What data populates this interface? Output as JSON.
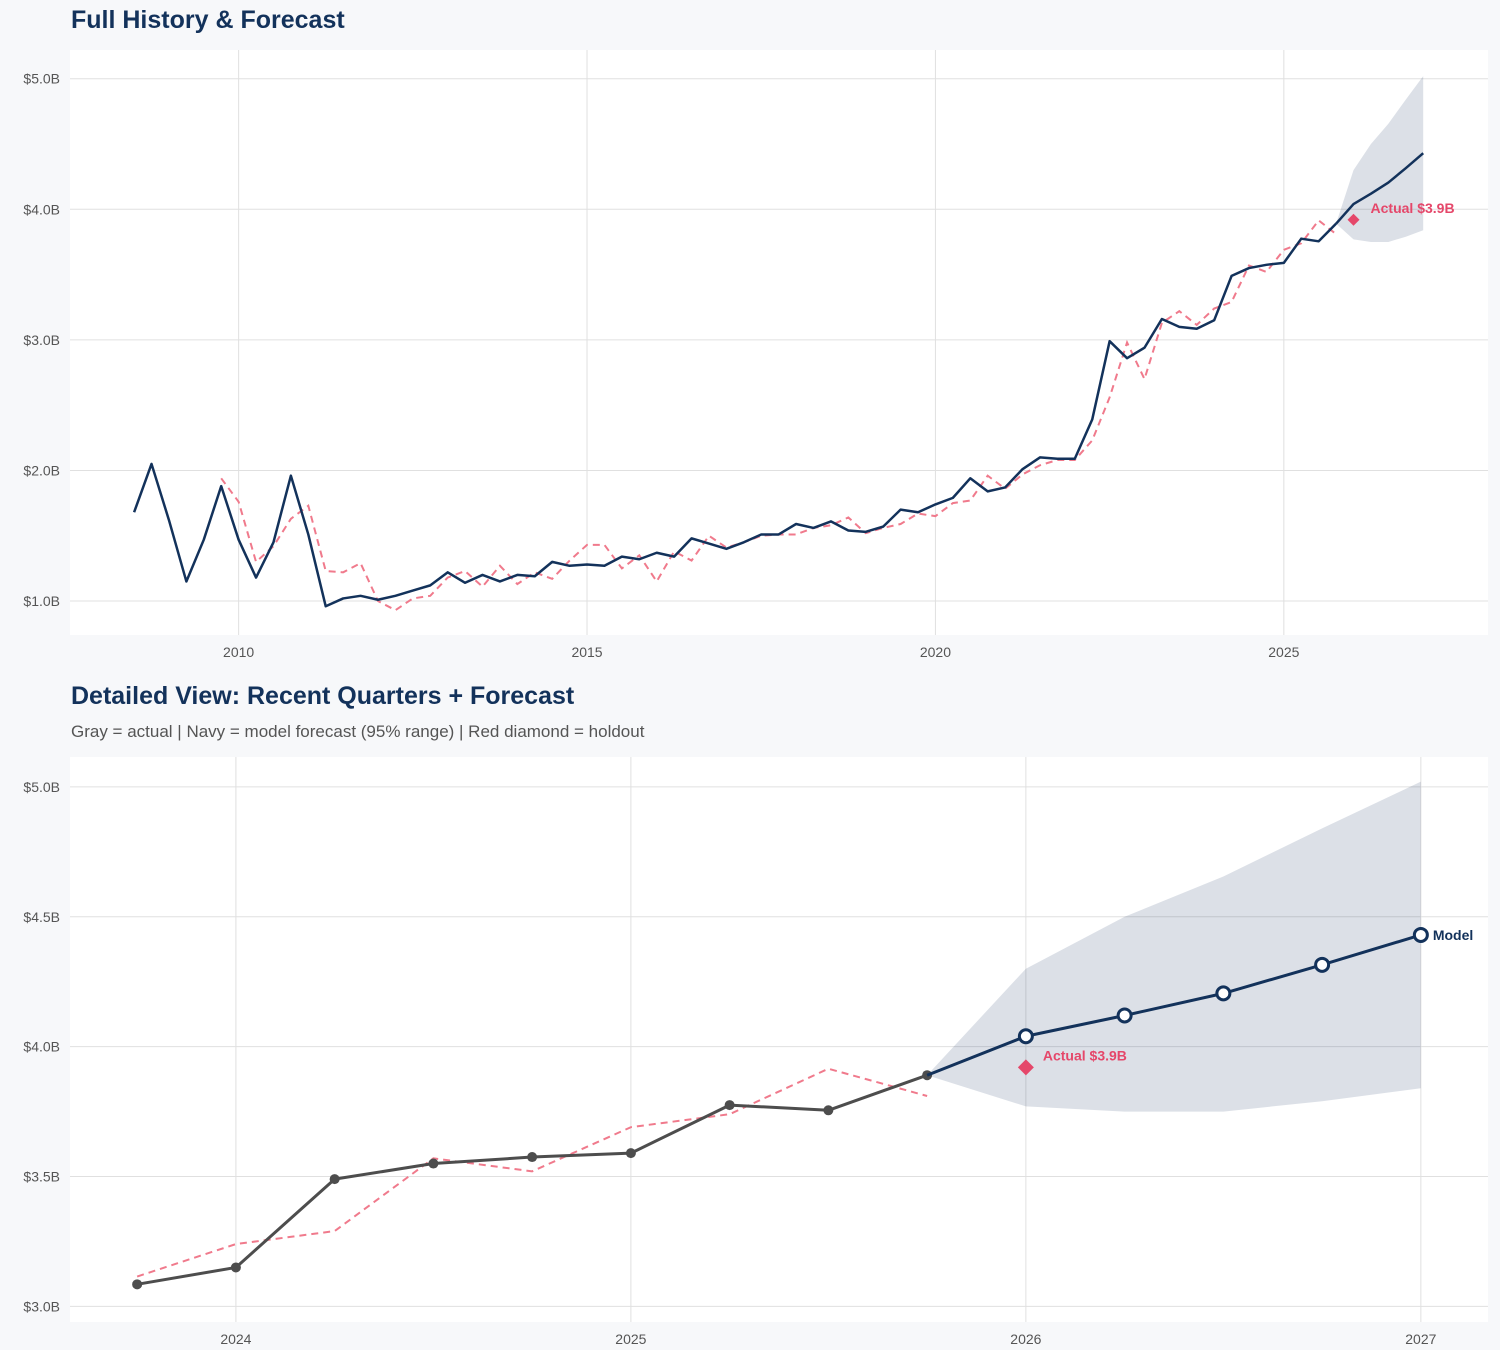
{
  "chart_data": [
    {
      "type": "line",
      "title": "Full History & Forecast",
      "xlabel": "",
      "ylabel": "",
      "xlim": [
        2007.58,
        2027.93
      ],
      "ylim": [
        0.74,
        5.22
      ],
      "x_ticks": [
        2010,
        2015,
        2020,
        2025
      ],
      "x_tick_labels": [
        "2010",
        "2015",
        "2020",
        "2025"
      ],
      "y_ticks": [
        1,
        2,
        3,
        4,
        5
      ],
      "y_tick_labels": [
        "$1.0B",
        "$2.0B",
        "$3.0B",
        "$4.0B",
        "$5.0B"
      ],
      "grid": true,
      "series": [
        {
          "name": "actual",
          "color": "#13325b",
          "style": "solid",
          "x_start": 2008.5,
          "step": 0.25,
          "values": [
            1.68,
            2.05,
            1.62,
            1.15,
            1.47,
            1.88,
            1.47,
            1.18,
            1.45,
            1.96,
            1.51,
            0.96,
            1.02,
            1.04,
            1.01,
            1.04,
            1.08,
            1.12,
            1.22,
            1.14,
            1.2,
            1.15,
            1.2,
            1.19,
            1.3,
            1.27,
            1.28,
            1.27,
            1.34,
            1.32,
            1.37,
            1.34,
            1.48,
            1.44,
            1.4,
            1.45,
            1.51,
            1.51,
            1.59,
            1.56,
            1.61,
            1.54,
            1.53,
            1.57,
            1.7,
            1.68,
            1.74,
            1.79,
            1.94,
            1.84,
            1.87,
            2.01,
            2.1,
            2.09,
            2.09,
            2.39,
            2.99,
            2.86,
            2.94,
            3.16,
            3.1,
            3.085,
            3.15,
            3.49,
            3.55,
            3.575,
            3.59,
            3.775,
            3.755,
            3.89
          ]
        },
        {
          "name": "fitted",
          "color": "#f07a8c",
          "style": "dashed",
          "x_start": 2009.75,
          "step": 0.25,
          "values": [
            1.94,
            1.76,
            1.3,
            1.42,
            1.63,
            1.73,
            1.23,
            1.22,
            1.29,
            1.0,
            0.93,
            1.02,
            1.04,
            1.18,
            1.23,
            1.11,
            1.27,
            1.13,
            1.22,
            1.17,
            1.31,
            1.43,
            1.43,
            1.25,
            1.35,
            1.15,
            1.38,
            1.31,
            1.5,
            1.41,
            1.45,
            1.5,
            1.51,
            1.51,
            1.56,
            1.58,
            1.64,
            1.52,
            1.56,
            1.59,
            1.67,
            1.65,
            1.75,
            1.77,
            1.96,
            1.86,
            1.97,
            2.04,
            2.08,
            2.08,
            2.23,
            2.56,
            2.98,
            2.7,
            3.13,
            3.22,
            3.115,
            3.24,
            3.29,
            3.57,
            3.52,
            3.69,
            3.74,
            3.915,
            3.81
          ]
        },
        {
          "name": "forecast",
          "color": "#13325b",
          "style": "solid",
          "x": [
            2025.75,
            2026.0,
            2026.25,
            2026.5,
            2026.75,
            2027.0
          ],
          "values": [
            3.89,
            4.04,
            4.12,
            4.205,
            4.315,
            4.43
          ],
          "upper": [
            3.89,
            4.3,
            4.5,
            4.655,
            4.84,
            5.02
          ],
          "lower": [
            3.89,
            3.77,
            3.75,
            3.75,
            3.79,
            3.84
          ]
        }
      ],
      "holdout": {
        "x": 2026.0,
        "value": 3.92,
        "label": "Actual $3.9B",
        "color": "#e5476a"
      }
    },
    {
      "type": "line",
      "title": "Detailed View: Recent Quarters + Forecast",
      "subtitle": "Gray = actual  |  Navy = model forecast (95% range)  |  Red diamond = holdout",
      "xlabel": "",
      "ylabel": "",
      "xlim": [
        2023.58,
        2027.17
      ],
      "ylim": [
        2.94,
        5.115
      ],
      "x_ticks": [
        2024,
        2025,
        2026,
        2027
      ],
      "x_tick_labels": [
        "2024",
        "2025",
        "2026",
        "2027"
      ],
      "y_ticks": [
        3.0,
        3.5,
        4.0,
        4.5,
        5.0
      ],
      "y_tick_labels": [
        "$3.0B",
        "$3.5B",
        "$4.0B",
        "$4.5B",
        "$5.0B"
      ],
      "grid": true,
      "series": [
        {
          "name": "actual",
          "color": "#4d4d4d",
          "style": "solid",
          "markers": "filled",
          "x_start": 2023.75,
          "step": 0.25,
          "values": [
            3.085,
            3.15,
            3.49,
            3.55,
            3.575,
            3.59,
            3.775,
            3.755,
            3.89
          ]
        },
        {
          "name": "fitted",
          "color": "#f07a8c",
          "style": "dashed",
          "x_start": 2023.75,
          "step": 0.25,
          "values": [
            3.115,
            3.24,
            3.29,
            3.57,
            3.52,
            3.69,
            3.74,
            3.915,
            3.81
          ]
        },
        {
          "name": "forecast",
          "color": "#13325b",
          "style": "solid",
          "markers": "open",
          "x": [
            2025.75,
            2026.0,
            2026.25,
            2026.5,
            2026.75,
            2027.0
          ],
          "values": [
            3.89,
            4.04,
            4.12,
            4.205,
            4.315,
            4.43
          ],
          "upper": [
            3.89,
            4.3,
            4.5,
            4.655,
            4.84,
            5.02
          ],
          "lower": [
            3.89,
            3.77,
            3.75,
            3.75,
            3.79,
            3.84
          ]
        }
      ],
      "holdout": {
        "x": 2026.0,
        "value": 3.92,
        "label": "Actual $3.9B",
        "color": "#e5476a"
      },
      "end_label": "Model"
    }
  ]
}
